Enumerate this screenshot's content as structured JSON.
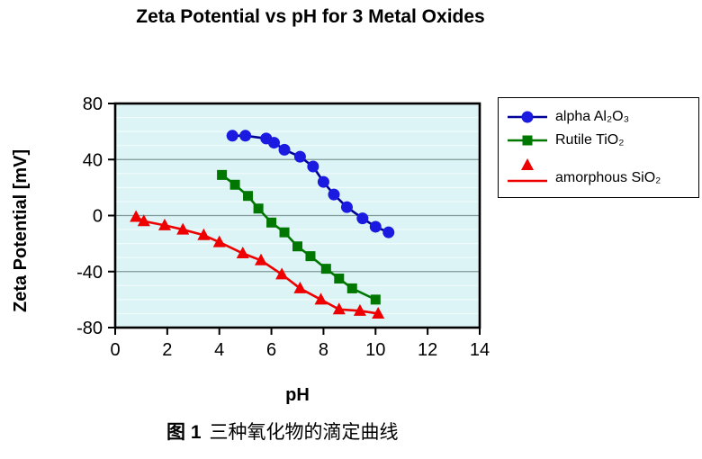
{
  "figure": {
    "caption_prefix": "图 1",
    "caption_text": "三种氧化物的滴定曲线"
  },
  "chart_data": {
    "type": "line",
    "title": "Zeta Potential vs pH for 3 Metal Oxides",
    "xlabel": "pH",
    "ylabel": "Zeta Potential [mV]",
    "xlim": [
      0,
      14
    ],
    "ylim": [
      -80,
      80
    ],
    "xticks": [
      0,
      2,
      4,
      6,
      8,
      10,
      12,
      14
    ],
    "yticks": [
      80,
      40,
      0,
      -40,
      -80
    ],
    "grid": "horizontal major lines every 40 mV, faint minor stripes every 10 mV",
    "legend_position": "right",
    "colors": {
      "plot_bg": "#dcf4f5",
      "major_grid": "#7f9999",
      "minor_grid": "#f0fbfb",
      "frame": "#000000"
    },
    "series": [
      {
        "name": "alpha Al₂O₃",
        "marker": "circle",
        "line_color": "#000099",
        "marker_color": "#1a1ae0",
        "points": [
          [
            4.5,
            57
          ],
          [
            5.0,
            57
          ],
          [
            5.8,
            55
          ],
          [
            6.1,
            52
          ],
          [
            6.5,
            47
          ],
          [
            7.1,
            42
          ],
          [
            7.6,
            35
          ],
          [
            8.0,
            24
          ],
          [
            8.4,
            15
          ],
          [
            8.9,
            6
          ],
          [
            9.5,
            -2
          ],
          [
            10.0,
            -8
          ],
          [
            10.5,
            -12
          ]
        ]
      },
      {
        "name": "Rutile TiO₂",
        "marker": "square",
        "line_color": "#007700",
        "marker_color": "#007700",
        "points": [
          [
            4.1,
            29
          ],
          [
            4.6,
            22
          ],
          [
            5.1,
            14
          ],
          [
            5.5,
            5
          ],
          [
            6.0,
            -5
          ],
          [
            6.5,
            -12
          ],
          [
            7.0,
            -22
          ],
          [
            7.5,
            -29
          ],
          [
            8.1,
            -38
          ],
          [
            8.6,
            -45
          ],
          [
            9.1,
            -52
          ],
          [
            10.0,
            -60
          ]
        ]
      },
      {
        "name": "amorphous SiO₂",
        "marker": "triangle",
        "line_color": "#ee0000",
        "marker_color": "#ee0000",
        "points": [
          [
            0.8,
            -1
          ],
          [
            1.1,
            -4
          ],
          [
            1.9,
            -7
          ],
          [
            2.6,
            -10
          ],
          [
            3.4,
            -14
          ],
          [
            4.0,
            -19
          ],
          [
            4.9,
            -27
          ],
          [
            5.6,
            -32
          ],
          [
            6.4,
            -42
          ],
          [
            7.1,
            -52
          ],
          [
            7.9,
            -60
          ],
          [
            8.6,
            -67
          ],
          [
            9.4,
            -68
          ],
          [
            10.1,
            -70
          ]
        ]
      }
    ]
  }
}
